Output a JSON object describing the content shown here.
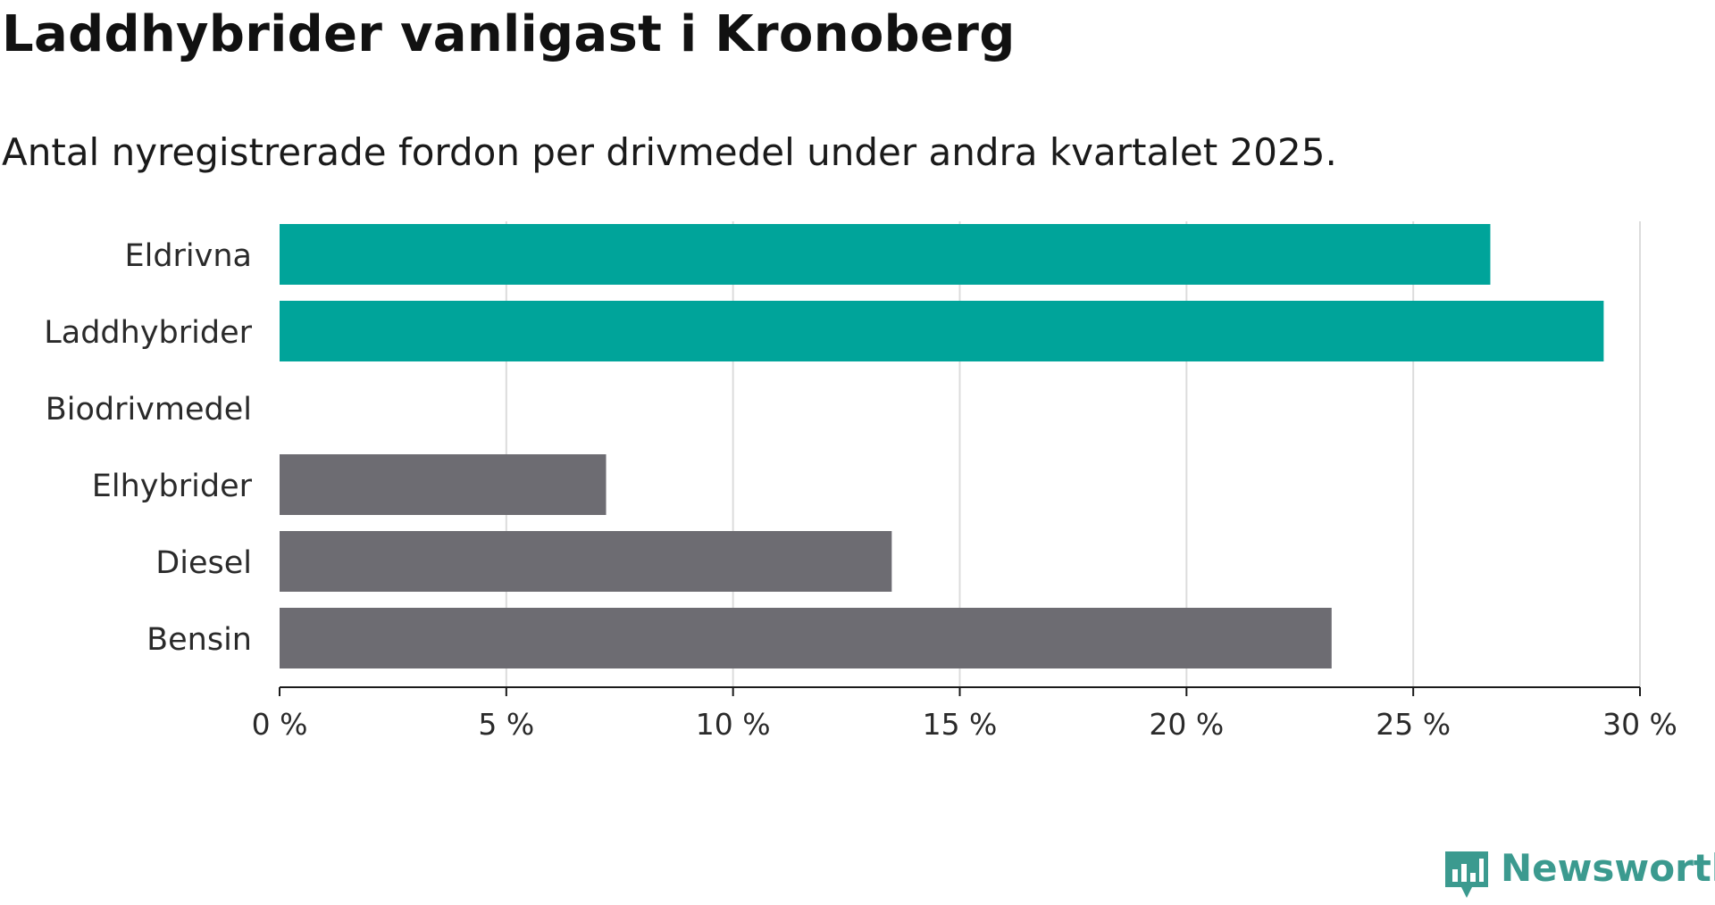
{
  "title": "Laddhybrider vanligast i Kronoberg",
  "subtitle": "Antal nyregistrerade fordon per drivmedel under andra kvartalet 2025.",
  "brand": "Newsworthy",
  "colors": {
    "highlight": "#00a49a",
    "muted": "#6d6c72",
    "grid": "#dcdcdc",
    "axis": "#1a1a1a",
    "brand": "#3b9a8f"
  },
  "chart_data": {
    "type": "bar",
    "orientation": "horizontal",
    "categories": [
      "Eldrivna",
      "Laddhybrider",
      "Biodrivmedel",
      "Elhybrider",
      "Diesel",
      "Bensin"
    ],
    "values": [
      26.7,
      29.2,
      0,
      7.2,
      13.5,
      23.2
    ],
    "highlighted": [
      true,
      true,
      false,
      false,
      false,
      false
    ],
    "xlim": [
      0,
      30
    ],
    "xticks": [
      0,
      5,
      10,
      15,
      20,
      25,
      30
    ],
    "xtick_labels": [
      "0 %",
      "5 %",
      "10 %",
      "15 %",
      "20 %",
      "25 %",
      "30 %"
    ],
    "grid": true,
    "legend": "none"
  }
}
